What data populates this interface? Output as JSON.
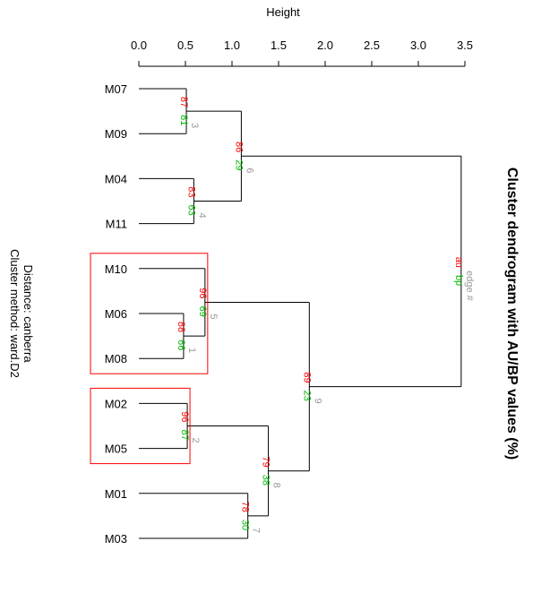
{
  "chart_data": {
    "type": "dendrogram",
    "title": "Cluster dendrogram with AU/BP values (%)",
    "axis_label": "Height",
    "axis_ticks": [
      "0.0",
      "0.5",
      "1.0",
      "1.5",
      "2.0",
      "2.5",
      "3.0",
      "3.5"
    ],
    "axis_range": [
      0,
      3.5
    ],
    "distance_text": "Distance:  canberra",
    "method_text": "Cluster method: ward.D2",
    "legend": {
      "au": "au",
      "bp": "bp",
      "edge": "edge #"
    },
    "leaves": [
      "M07",
      "M09",
      "M04",
      "M11",
      "M10",
      "M06",
      "M08",
      "M02",
      "M05",
      "M01",
      "M03"
    ],
    "merges": [
      {
        "id": 1,
        "left": "M06",
        "right": "M08",
        "height": 0.48,
        "au": "88",
        "bp": "66",
        "edge": "1"
      },
      {
        "id": 2,
        "left": "M02",
        "right": "M05",
        "height": 0.52,
        "au": "96",
        "bp": "87",
        "edge": "2"
      },
      {
        "id": 3,
        "left": "M07",
        "right": "M09",
        "height": 0.51,
        "au": "87",
        "bp": "81",
        "edge": "3"
      },
      {
        "id": 4,
        "left": "M04",
        "right": "M11",
        "height": 0.59,
        "au": "83",
        "bp": "63",
        "edge": "4"
      },
      {
        "id": 5,
        "left": "M10",
        "right": 1,
        "height": 0.71,
        "au": "96",
        "bp": "69",
        "edge": "5"
      },
      {
        "id": 6,
        "left": 3,
        "right": 4,
        "height": 1.1,
        "au": "86",
        "bp": "29",
        "edge": "6"
      },
      {
        "id": 7,
        "left": "M01",
        "right": "M03",
        "height": 1.17,
        "au": "78",
        "bp": "30",
        "edge": "7"
      },
      {
        "id": 8,
        "left": 2,
        "right": 7,
        "height": 1.39,
        "au": "79",
        "bp": "38",
        "edge": "8"
      },
      {
        "id": 9,
        "left": 5,
        "right": 8,
        "height": 1.83,
        "au": "89",
        "bp": "23",
        "edge": "9"
      },
      {
        "id": 10,
        "left": 6,
        "right": 9,
        "height": 3.46,
        "au": "au",
        "bp": "bp",
        "edge": "edge #"
      }
    ],
    "highlight_boxes": [
      {
        "leaves": [
          "M10",
          "M06",
          "M08"
        ],
        "color": "#ff0000"
      },
      {
        "leaves": [
          "M02",
          "M05"
        ],
        "color": "#ff0000"
      }
    ]
  }
}
